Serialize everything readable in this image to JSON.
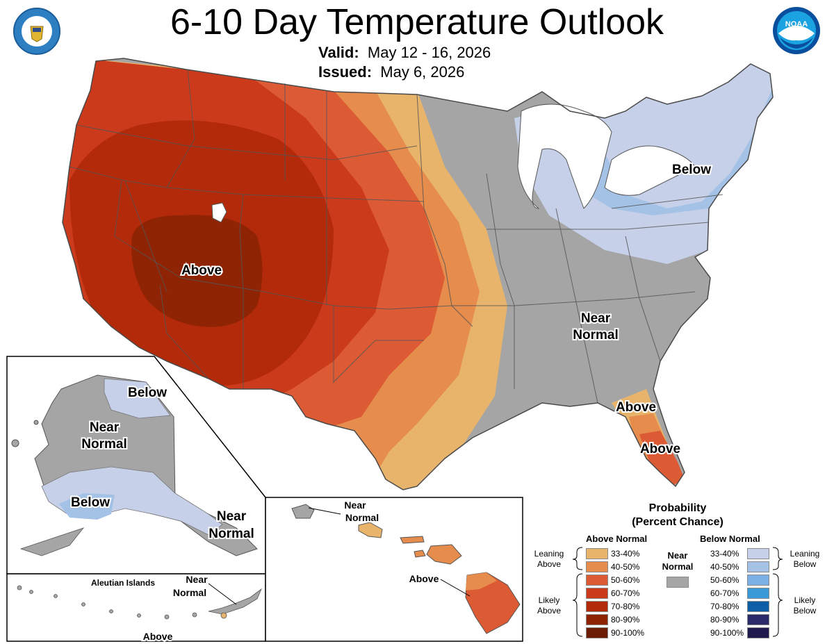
{
  "header": {
    "title": "6-10 Day Temperature Outlook",
    "valid_label": "Valid:",
    "valid_value": "May 12 - 16, 2026",
    "issued_label": "Issued:",
    "issued_value": "May 6, 2026",
    "left_logo": "department-of-commerce-seal",
    "right_logo": "noaa-logo",
    "right_logo_text": "NOAA"
  },
  "map_labels": {
    "conus_above": "Above",
    "conus_below": "Below",
    "conus_near_1": "Near",
    "conus_near_2": "Normal",
    "florida_above_1": "Above",
    "florida_above_2": "Above",
    "alaska_below_north": "Below",
    "alaska_near_1": "Near",
    "alaska_near_2": "Normal",
    "alaska_below_south": "Below",
    "alaska_panhandle_near_1": "Near",
    "alaska_panhandle_near_2": "Normal",
    "aleutian_title": "Aleutian Islands",
    "aleutian_near_1": "Near",
    "aleutian_near_2": "Normal",
    "aleutian_above": "Above",
    "hawaii_near_1": "Near",
    "hawaii_near_2": "Normal",
    "hawaii_above": "Above"
  },
  "legend": {
    "title_1": "Probability",
    "title_2": "(Percent Chance)",
    "above_header": "Above Normal",
    "below_header": "Below Normal",
    "near_1": "Near",
    "near_2": "Normal",
    "leaning_above_1": "Leaning",
    "leaning_above_2": "Above",
    "likely_above_1": "Likely",
    "likely_above_2": "Above",
    "leaning_below_1": "Leaning",
    "leaning_below_2": "Below",
    "likely_below_1": "Likely",
    "likely_below_2": "Below",
    "above_bins": [
      {
        "label": "33-40%",
        "color": "#e8b46b"
      },
      {
        "label": "40-50%",
        "color": "#e68c4c"
      },
      {
        "label": "50-60%",
        "color": "#dc5a34"
      },
      {
        "label": "60-70%",
        "color": "#cc3a1c"
      },
      {
        "label": "70-80%",
        "color": "#b32a0a"
      },
      {
        "label": "80-90%",
        "color": "#8f2404"
      },
      {
        "label": "90-100%",
        "color": "#6b1c02"
      }
    ],
    "below_bins": [
      {
        "label": "33-40%",
        "color": "#c6d0e9"
      },
      {
        "label": "40-50%",
        "color": "#a4c2e6"
      },
      {
        "label": "50-60%",
        "color": "#7ab0e4"
      },
      {
        "label": "60-70%",
        "color": "#3a9ad8"
      },
      {
        "label": "70-80%",
        "color": "#0c5ea6"
      },
      {
        "label": "80-90%",
        "color": "#2a2a6a"
      },
      {
        "label": "90-100%",
        "color": "#1e1a4e"
      }
    ],
    "near_color": "#a5a5a5"
  }
}
